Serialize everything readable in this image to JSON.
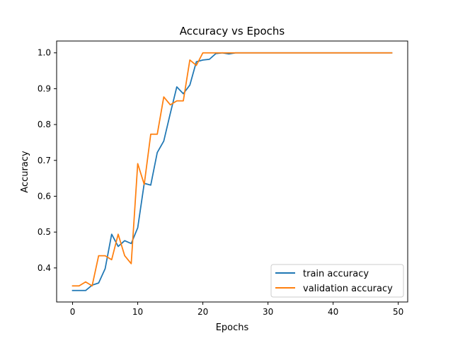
{
  "chart_data": {
    "type": "line",
    "title": "Accuracy vs Epochs",
    "xlabel": "Epochs",
    "ylabel": "Accuracy",
    "xlim": [
      -2.45,
      51.45
    ],
    "ylim": [
      0.305,
      1.033
    ],
    "x_ticks": [
      0,
      10,
      20,
      30,
      40,
      50
    ],
    "y_ticks": [
      0.4,
      0.5,
      0.6,
      0.7,
      0.8,
      0.9,
      1.0
    ],
    "x_tick_labels": [
      "0",
      "10",
      "20",
      "30",
      "40",
      "50"
    ],
    "y_tick_labels": [
      "0.4",
      "0.5",
      "0.6",
      "0.7",
      "0.8",
      "0.9",
      "1.0"
    ],
    "grid": false,
    "legend_position": "lower-right",
    "x": [
      0,
      1,
      2,
      3,
      4,
      5,
      6,
      7,
      8,
      9,
      10,
      11,
      12,
      13,
      14,
      15,
      16,
      17,
      18,
      19,
      20,
      21,
      22,
      23,
      24,
      25,
      26,
      27,
      28,
      29,
      30,
      31,
      32,
      33,
      34,
      35,
      36,
      37,
      38,
      39,
      40,
      41,
      42,
      43,
      44,
      45,
      46,
      47,
      48,
      49
    ],
    "series": [
      {
        "name": "train accuracy",
        "color": "#1f77b4",
        "values": [
          0.337,
          0.337,
          0.337,
          0.352,
          0.358,
          0.398,
          0.494,
          0.46,
          0.476,
          0.468,
          0.512,
          0.636,
          0.631,
          0.722,
          0.754,
          0.831,
          0.905,
          0.886,
          0.91,
          0.975,
          0.98,
          0.982,
          0.998,
          1.0,
          0.997,
          1.0,
          1.0,
          1.0,
          1.0,
          1.0,
          1.0,
          1.0,
          1.0,
          1.0,
          1.0,
          1.0,
          1.0,
          1.0,
          1.0,
          1.0,
          1.0,
          1.0,
          1.0,
          1.0,
          1.0,
          1.0,
          1.0,
          1.0,
          1.0,
          1.0
        ]
      },
      {
        "name": "validation accuracy",
        "color": "#ff7f0e",
        "values": [
          0.35,
          0.35,
          0.361,
          0.35,
          0.434,
          0.434,
          0.423,
          0.494,
          0.434,
          0.412,
          0.691,
          0.633,
          0.773,
          0.773,
          0.877,
          0.855,
          0.866,
          0.866,
          0.98,
          0.965,
          1.0,
          1.0,
          1.0,
          1.0,
          1.0,
          1.0,
          1.0,
          1.0,
          1.0,
          1.0,
          1.0,
          1.0,
          1.0,
          1.0,
          1.0,
          1.0,
          1.0,
          1.0,
          1.0,
          1.0,
          1.0,
          1.0,
          1.0,
          1.0,
          1.0,
          1.0,
          1.0,
          1.0,
          1.0,
          1.0
        ]
      }
    ]
  }
}
